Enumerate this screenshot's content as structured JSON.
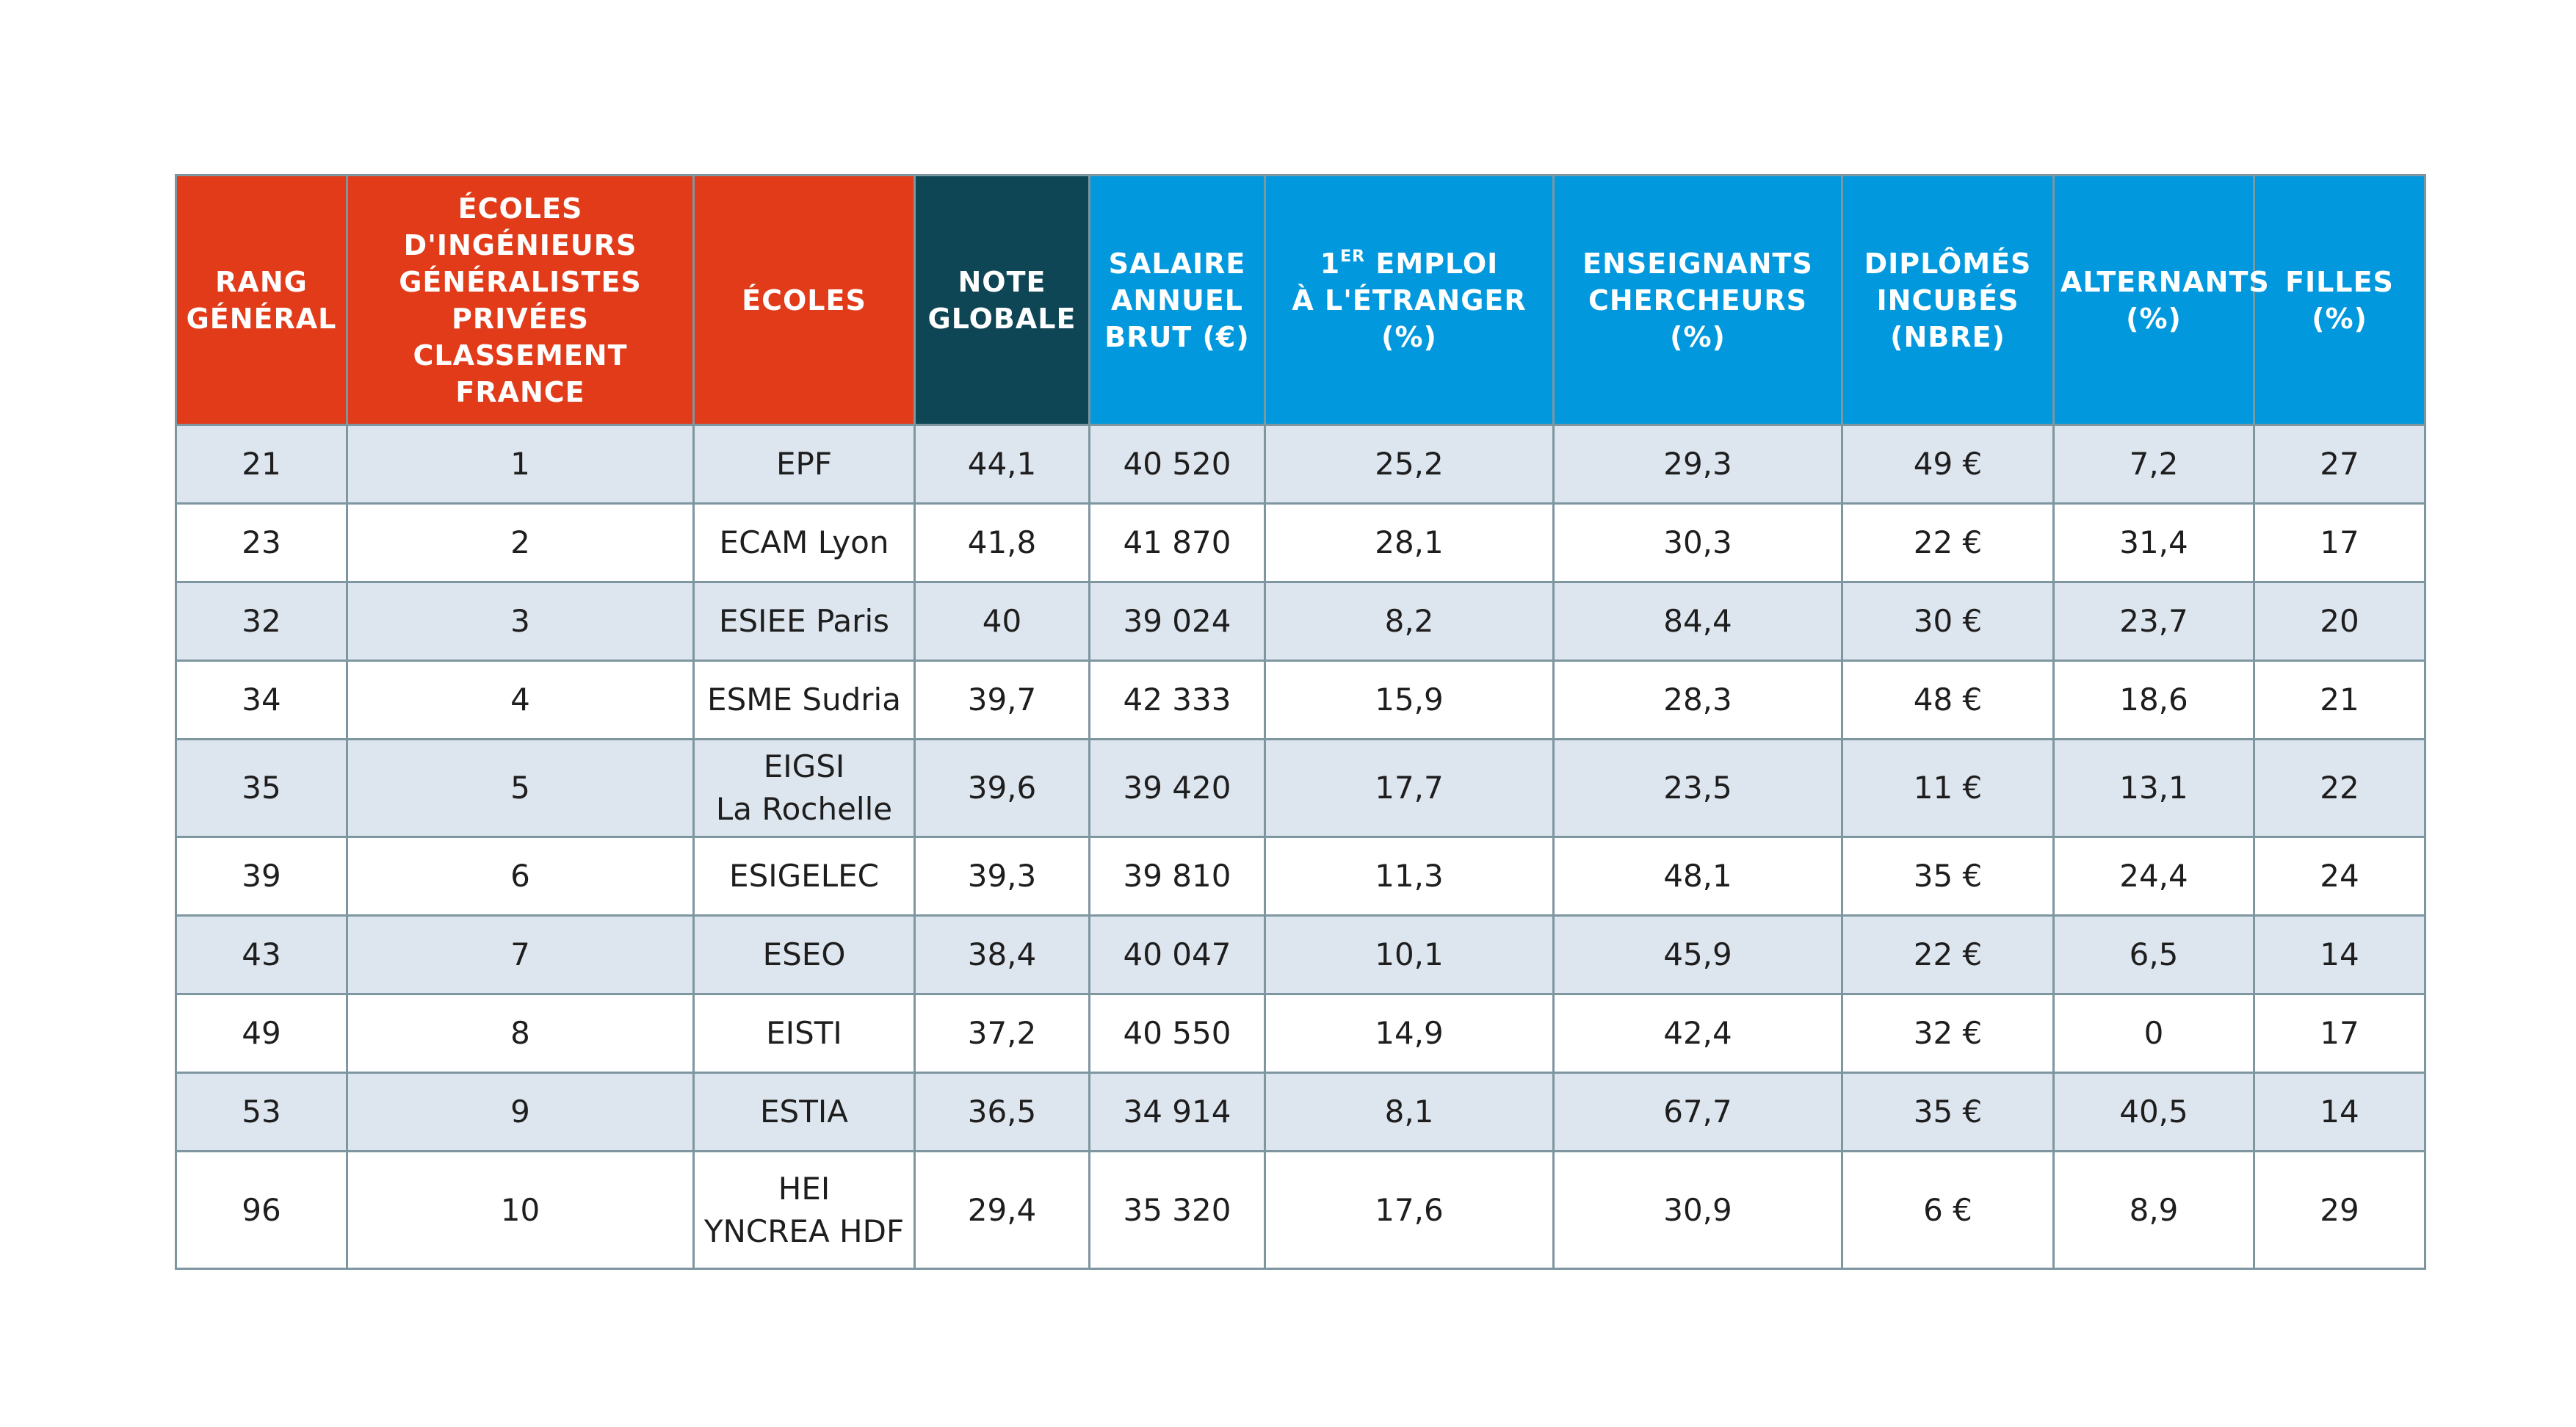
{
  "table": {
    "headers": {
      "rang": [
        "RANG",
        "GÉNÉRAL"
      ],
      "classement": [
        "ÉCOLES",
        "D'INGÉNIEURS",
        "GÉNÉRALISTES",
        "PRIVÉES CLASSEMENT",
        "FRANCE"
      ],
      "ecoles": [
        "ÉCOLES"
      ],
      "note": [
        "NOTE",
        "GLOBALE"
      ],
      "salaire": [
        "SALAIRE",
        "ANNUEL",
        "BRUT (€)"
      ],
      "emploi": {
        "num": "1",
        "sup": "ER",
        "rest": " EMPLOI",
        "line2": "À L'ÉTRANGER",
        "line3": "(%)"
      },
      "enseignants": [
        "ENSEIGNANTS",
        "CHERCHEURS (%)"
      ],
      "diplomes": [
        "DIPLÔMÉS",
        "INCUBÉS",
        "(NBRE)"
      ],
      "alternants": [
        "ALTERNANTS",
        "(%)"
      ],
      "filles": [
        "FILLES (%)"
      ]
    },
    "header_colors": {
      "red": "#e23b1a",
      "dark": "#0f4655",
      "blue": "#0198dd"
    },
    "rows": [
      {
        "rang": "21",
        "classement": "1",
        "ecole": [
          "EPF"
        ],
        "note": "44,1",
        "salaire": "40 520",
        "emploi": "25,2",
        "enseignants": "29,3",
        "diplomes": "49 €",
        "alternants": "7,2",
        "filles": "27"
      },
      {
        "rang": "23",
        "classement": "2",
        "ecole": [
          "ECAM Lyon"
        ],
        "note": "41,8",
        "salaire": "41 870",
        "emploi": "28,1",
        "enseignants": "30,3",
        "diplomes": "22 €",
        "alternants": "31,4",
        "filles": "17"
      },
      {
        "rang": "32",
        "classement": "3",
        "ecole": [
          "ESIEE Paris"
        ],
        "note": "40",
        "salaire": "39 024",
        "emploi": "8,2",
        "enseignants": "84,4",
        "diplomes": "30 €",
        "alternants": "23,7",
        "filles": "20"
      },
      {
        "rang": "34",
        "classement": "4",
        "ecole": [
          "ESME Sudria"
        ],
        "note": "39,7",
        "salaire": "42 333",
        "emploi": "15,9",
        "enseignants": "28,3",
        "diplomes": "48 €",
        "alternants": "18,6",
        "filles": "21"
      },
      {
        "rang": "35",
        "classement": "5",
        "ecole": [
          "EIGSI",
          "La Rochelle"
        ],
        "note": "39,6",
        "salaire": "39 420",
        "emploi": "17,7",
        "enseignants": "23,5",
        "diplomes": "11 €",
        "alternants": "13,1",
        "filles": "22"
      },
      {
        "rang": "39",
        "classement": "6",
        "ecole": [
          "ESIGELEC"
        ],
        "note": "39,3",
        "salaire": "39 810",
        "emploi": "11,3",
        "enseignants": "48,1",
        "diplomes": "35 €",
        "alternants": "24,4",
        "filles": "24"
      },
      {
        "rang": "43",
        "classement": "7",
        "ecole": [
          "ESEO"
        ],
        "note": "38,4",
        "salaire": "40 047",
        "emploi": "10,1",
        "enseignants": "45,9",
        "diplomes": "22 €",
        "alternants": "6,5",
        "filles": "14"
      },
      {
        "rang": "49",
        "classement": "8",
        "ecole": [
          "EISTI"
        ],
        "note": "37,2",
        "salaire": "40 550",
        "emploi": "14,9",
        "enseignants": "42,4",
        "diplomes": "32 €",
        "alternants": "0",
        "filles": "17"
      },
      {
        "rang": "53",
        "classement": "9",
        "ecole": [
          "ESTIA"
        ],
        "note": "36,5",
        "salaire": "34 914",
        "emploi": "8,1",
        "enseignants": "67,7",
        "diplomes": "35 €",
        "alternants": "40,5",
        "filles": "14"
      },
      {
        "rang": "96",
        "classement": "10",
        "ecole": [
          "HEI",
          "YNCREA HDF"
        ],
        "note": "29,4",
        "salaire": "35 320",
        "emploi": "17,6",
        "enseignants": "30,9",
        "diplomes": "6 €",
        "alternants": "8,9",
        "filles": "29"
      }
    ]
  }
}
